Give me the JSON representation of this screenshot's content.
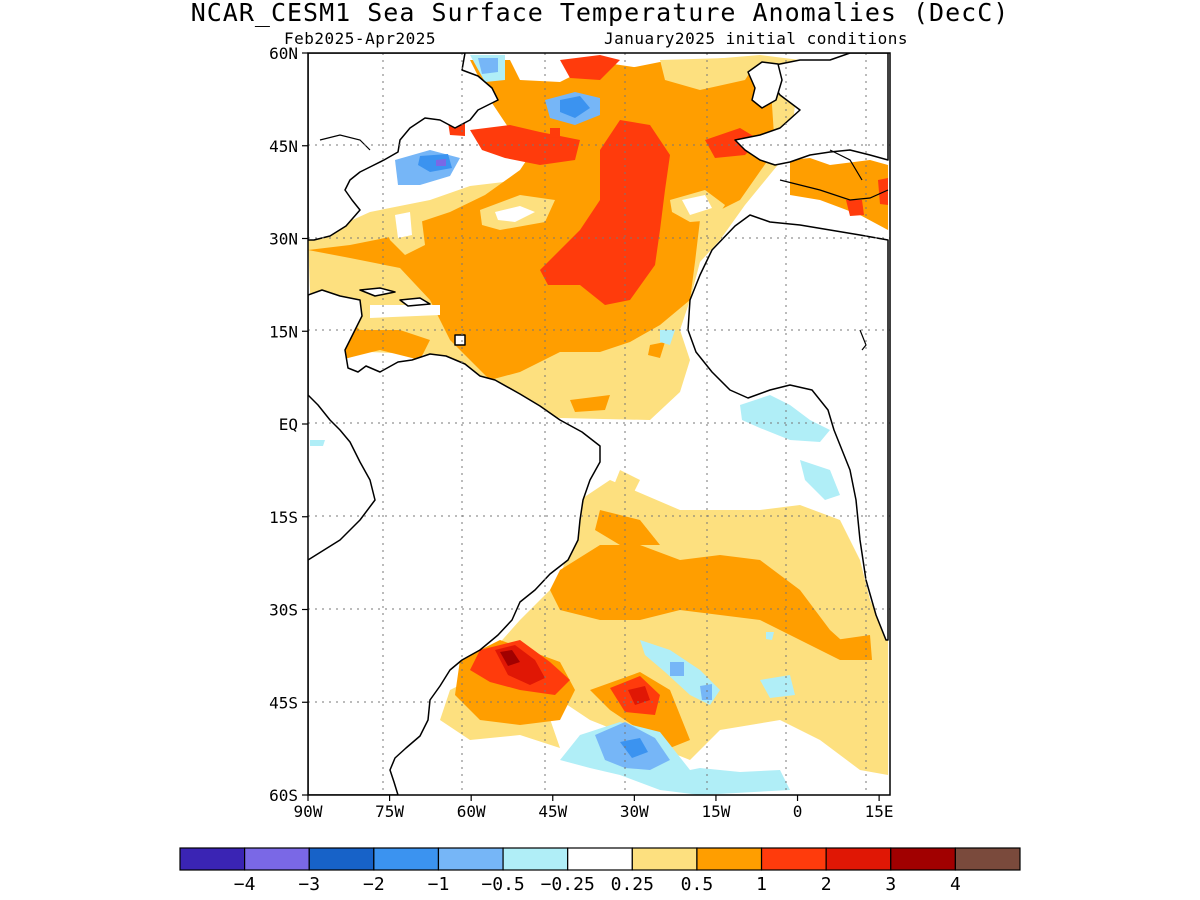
{
  "title": "NCAR_CESM1 Sea Surface Temperature Anomalies (DecC)",
  "subtitle_left": "Feb2025-Apr2025",
  "subtitle_right": "January2025 initial conditions",
  "lat_ticks": [
    {
      "label": "60N",
      "lat": 60
    },
    {
      "label": "45N",
      "lat": 45
    },
    {
      "label": "30N",
      "lat": 30
    },
    {
      "label": "15N",
      "lat": 15
    },
    {
      "label": "EQ",
      "lat": 0
    },
    {
      "label": "15S",
      "lat": -15
    },
    {
      "label": "30S",
      "lat": -30
    },
    {
      "label": "45S",
      "lat": -45
    },
    {
      "label": "60S",
      "lat": -60
    }
  ],
  "lon_ticks": [
    {
      "label": "90W",
      "lon": -90
    },
    {
      "label": "75W",
      "lon": -75
    },
    {
      "label": "60W",
      "lon": -60
    },
    {
      "label": "45W",
      "lon": -45
    },
    {
      "label": "30W",
      "lon": -30
    },
    {
      "label": "15W",
      "lon": -15
    },
    {
      "label": "0",
      "lon": 0
    },
    {
      "label": "15E",
      "lon": 15
    }
  ],
  "extent": {
    "lon": [
      -90,
      17
    ],
    "lat": [
      -60,
      60
    ]
  },
  "colorbar": {
    "colors": [
      "#3a24b4",
      "#7a68e6",
      "#1762c8",
      "#3b93f0",
      "#76b6f7",
      "#b0eef7",
      "#ffffff",
      "#fde07f",
      "#ff9e00",
      "#ff3b0c",
      "#e01705",
      "#a10000",
      "#7a4a3c"
    ],
    "labels": [
      "-4",
      "-3",
      "-2",
      "-1",
      "-0.5",
      "-0.25",
      "0.25",
      "0.5",
      "1",
      "2",
      "3",
      "4"
    ]
  }
}
